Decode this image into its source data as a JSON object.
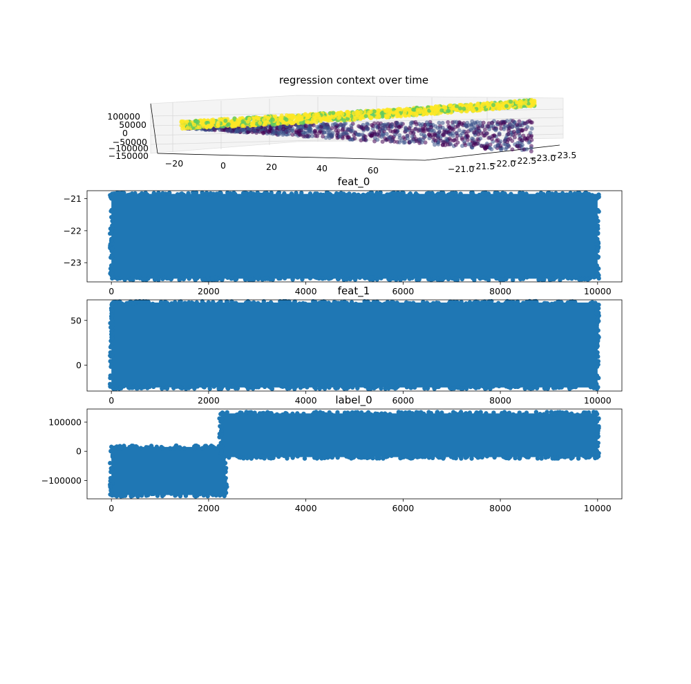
{
  "chart_data": [
    {
      "type": "scatter3d",
      "title": "regression context over time",
      "axes": {
        "x_ticks": [
          "−20",
          "0",
          "20",
          "40",
          "60"
        ],
        "y_ticks": [
          "−21.0",
          "−21.5",
          "−22.0",
          "−22.5",
          "−23.0",
          "−23.5"
        ],
        "z_ticks": [
          "100000",
          "50000",
          "0",
          "−50000",
          "−100000",
          "−150000"
        ],
        "x_range": [
          -28,
          75
        ],
        "y_range": [
          -20.9,
          -23.6
        ],
        "z_range": [
          -150000,
          130000
        ]
      },
      "colormap": "viridis",
      "colors": {
        "low": "#440154",
        "mid": "#3b528b",
        "high": "#fde725",
        "upper": "#5ec962"
      },
      "series": [
        {
          "z_min": -150000,
          "z_max": 130000,
          "x_range": [
            -25,
            75
          ]
        }
      ]
    },
    {
      "type": "scatter",
      "title": "feat_0",
      "x_ticks": [
        "0",
        "2000",
        "4000",
        "6000",
        "8000",
        "10000"
      ],
      "y_ticks": [
        "−21",
        "−22",
        "−23"
      ],
      "xlim": [
        -500,
        10500
      ],
      "ylim": [
        -23.6,
        -20.75
      ],
      "x_extent": [
        0,
        10000
      ],
      "y_extent": [
        -23.5,
        -20.85
      ],
      "color": "#1f77b4"
    },
    {
      "type": "scatter",
      "title": "feat_1",
      "x_ticks": [
        "0",
        "2000",
        "4000",
        "6000",
        "8000",
        "10000"
      ],
      "y_ticks": [
        "50",
        "0"
      ],
      "xlim": [
        -500,
        10500
      ],
      "ylim": [
        -29,
        73
      ],
      "x_extent": [
        0,
        10000
      ],
      "y_extent": [
        -25,
        70
      ],
      "color": "#1f77b4"
    },
    {
      "type": "scatter",
      "title": "label_0",
      "x_ticks": [
        "0",
        "2000",
        "4000",
        "6000",
        "8000",
        "10000"
      ],
      "y_ticks": [
        "100000",
        "0",
        "−100000"
      ],
      "xlim": [
        -500,
        10500
      ],
      "ylim": [
        -163000,
        145000
      ],
      "segments": [
        {
          "x_extent": [
            0,
            2350
          ],
          "y_extent": [
            -150000,
            15000
          ]
        },
        {
          "x_extent": [
            2250,
            10000
          ],
          "y_extent": [
            -20000,
            130000
          ]
        }
      ],
      "color": "#1f77b4"
    }
  ]
}
